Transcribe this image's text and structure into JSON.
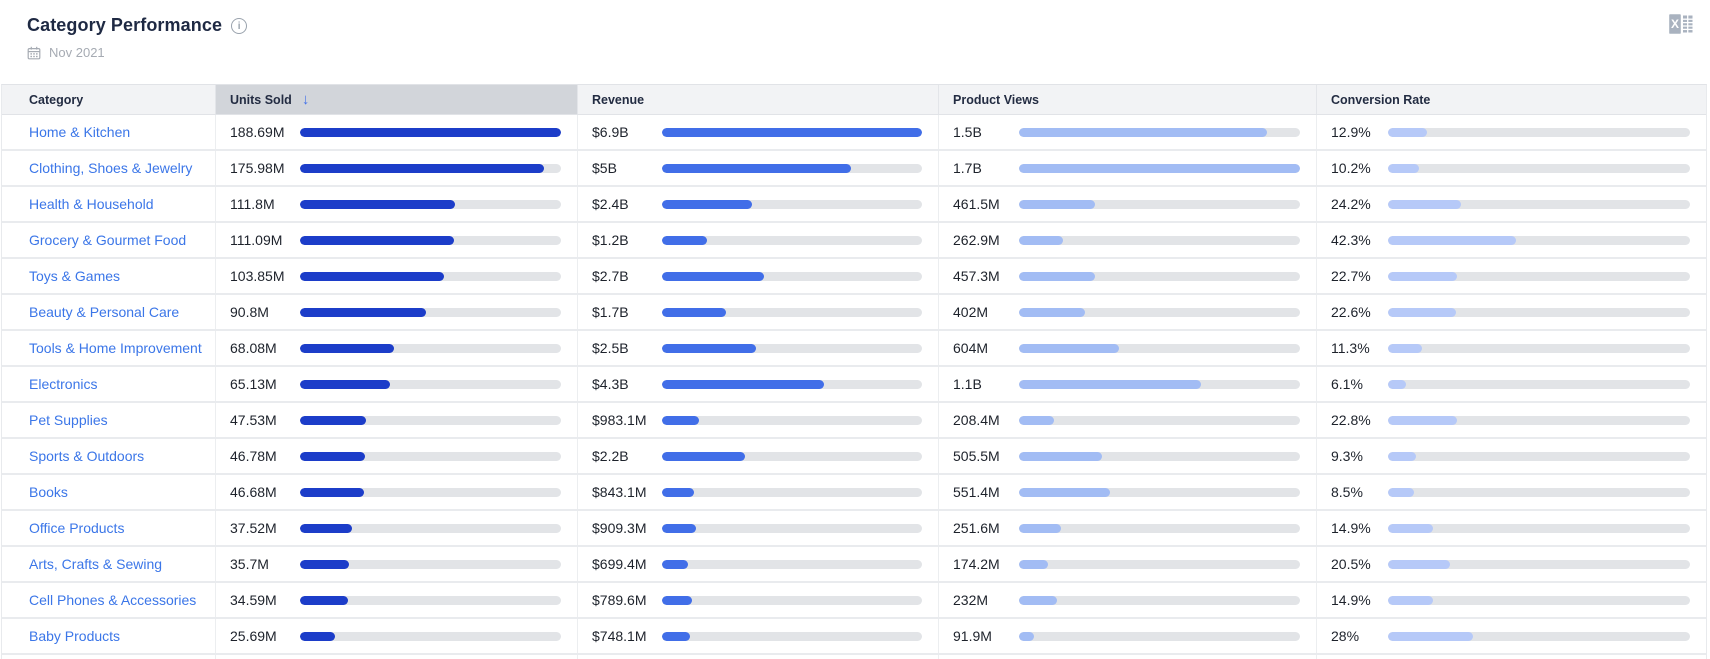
{
  "header": {
    "title": "Category Performance",
    "date": "Nov 2021"
  },
  "table": {
    "sort_arrow_glyph": "↓",
    "columns": [
      {
        "label": "Category",
        "sorted": false
      },
      {
        "label": "Units Sold",
        "sorted": true,
        "sort_direction": "desc"
      },
      {
        "label": "Revenue",
        "sorted": false
      },
      {
        "label": "Product Views",
        "sorted": false
      },
      {
        "label": "Conversion Rate",
        "sorted": false
      }
    ],
    "rows": [
      {
        "category": "Home & Kitchen",
        "units_sold": {
          "value": "188.69M",
          "pct": 100
        },
        "revenue": {
          "value": "$6.9B",
          "pct": 100
        },
        "product_views": {
          "value": "1.5B",
          "pct": 88.2
        },
        "conversion_rate": {
          "value": "12.9%",
          "pct": 12.9
        }
      },
      {
        "category": "Clothing, Shoes & Jewelry",
        "units_sold": {
          "value": "175.98M",
          "pct": 93.3
        },
        "revenue": {
          "value": "$5B",
          "pct": 72.5
        },
        "product_views": {
          "value": "1.7B",
          "pct": 100
        },
        "conversion_rate": {
          "value": "10.2%",
          "pct": 10.2
        }
      },
      {
        "category": "Health & Household",
        "units_sold": {
          "value": "111.8M",
          "pct": 59.3
        },
        "revenue": {
          "value": "$2.4B",
          "pct": 34.8
        },
        "product_views": {
          "value": "461.5M",
          "pct": 27.1
        },
        "conversion_rate": {
          "value": "24.2%",
          "pct": 24.2
        }
      },
      {
        "category": "Grocery & Gourmet Food",
        "units_sold": {
          "value": "111.09M",
          "pct": 58.9
        },
        "revenue": {
          "value": "$1.2B",
          "pct": 17.4
        },
        "product_views": {
          "value": "262.9M",
          "pct": 15.5
        },
        "conversion_rate": {
          "value": "42.3%",
          "pct": 42.3
        }
      },
      {
        "category": "Toys & Games",
        "units_sold": {
          "value": "103.85M",
          "pct": 55.0
        },
        "revenue": {
          "value": "$2.7B",
          "pct": 39.1
        },
        "product_views": {
          "value": "457.3M",
          "pct": 26.9
        },
        "conversion_rate": {
          "value": "22.7%",
          "pct": 22.7
        }
      },
      {
        "category": "Beauty & Personal Care",
        "units_sold": {
          "value": "90.8M",
          "pct": 48.1
        },
        "revenue": {
          "value": "$1.7B",
          "pct": 24.6
        },
        "product_views": {
          "value": "402M",
          "pct": 23.6
        },
        "conversion_rate": {
          "value": "22.6%",
          "pct": 22.6
        }
      },
      {
        "category": "Tools & Home Improvement",
        "units_sold": {
          "value": "68.08M",
          "pct": 36.1
        },
        "revenue": {
          "value": "$2.5B",
          "pct": 36.2
        },
        "product_views": {
          "value": "604M",
          "pct": 35.5
        },
        "conversion_rate": {
          "value": "11.3%",
          "pct": 11.3
        }
      },
      {
        "category": "Electronics",
        "units_sold": {
          "value": "65.13M",
          "pct": 34.5
        },
        "revenue": {
          "value": "$4.3B",
          "pct": 62.3
        },
        "product_views": {
          "value": "1.1B",
          "pct": 64.7
        },
        "conversion_rate": {
          "value": "6.1%",
          "pct": 6.1
        }
      },
      {
        "category": "Pet Supplies",
        "units_sold": {
          "value": "47.53M",
          "pct": 25.2
        },
        "revenue": {
          "value": "$983.1M",
          "pct": 14.2
        },
        "product_views": {
          "value": "208.4M",
          "pct": 12.3
        },
        "conversion_rate": {
          "value": "22.8%",
          "pct": 22.8
        }
      },
      {
        "category": "Sports & Outdoors",
        "units_sold": {
          "value": "46.78M",
          "pct": 24.8
        },
        "revenue": {
          "value": "$2.2B",
          "pct": 31.9
        },
        "product_views": {
          "value": "505.5M",
          "pct": 29.7
        },
        "conversion_rate": {
          "value": "9.3%",
          "pct": 9.3
        }
      },
      {
        "category": "Books",
        "units_sold": {
          "value": "46.68M",
          "pct": 24.7
        },
        "revenue": {
          "value": "$843.1M",
          "pct": 12.2
        },
        "product_views": {
          "value": "551.4M",
          "pct": 32.4
        },
        "conversion_rate": {
          "value": "8.5%",
          "pct": 8.5
        }
      },
      {
        "category": "Office Products",
        "units_sold": {
          "value": "37.52M",
          "pct": 19.9
        },
        "revenue": {
          "value": "$909.3M",
          "pct": 13.2
        },
        "product_views": {
          "value": "251.6M",
          "pct": 14.8
        },
        "conversion_rate": {
          "value": "14.9%",
          "pct": 14.9
        }
      },
      {
        "category": "Arts, Crafts & Sewing",
        "units_sold": {
          "value": "35.7M",
          "pct": 18.9
        },
        "revenue": {
          "value": "$699.4M",
          "pct": 10.1
        },
        "product_views": {
          "value": "174.2M",
          "pct": 10.2
        },
        "conversion_rate": {
          "value": "20.5%",
          "pct": 20.5
        }
      },
      {
        "category": "Cell Phones & Accessories",
        "units_sold": {
          "value": "34.59M",
          "pct": 18.3
        },
        "revenue": {
          "value": "$789.6M",
          "pct": 11.4
        },
        "product_views": {
          "value": "232M",
          "pct": 13.6
        },
        "conversion_rate": {
          "value": "14.9%",
          "pct": 14.9
        }
      },
      {
        "category": "Baby Products",
        "units_sold": {
          "value": "25.69M",
          "pct": 13.6
        },
        "revenue": {
          "value": "$748.1M",
          "pct": 10.8
        },
        "product_views": {
          "value": "91.9M",
          "pct": 5.4
        },
        "conversion_rate": {
          "value": "28%",
          "pct": 28
        }
      }
    ]
  },
  "colors": {
    "units_sold_bar": "#1c3dc9",
    "revenue_bar": "#416ee8",
    "product_views_bar": "#a2bcf4",
    "conversion_rate_bar": "#b6c9f8",
    "bar_track": "#e2e4e7",
    "category_link": "#3b76e8",
    "sort_arrow": "#4472e9",
    "sorted_header_bg": "#d2d5da",
    "header_bg": "#f2f3f5",
    "title_text": "#1e2943",
    "muted_text": "#a6abb3"
  },
  "icons": {
    "info": "info-circle",
    "calendar": "calendar",
    "export": "excel-export",
    "sort": "arrow-down"
  }
}
